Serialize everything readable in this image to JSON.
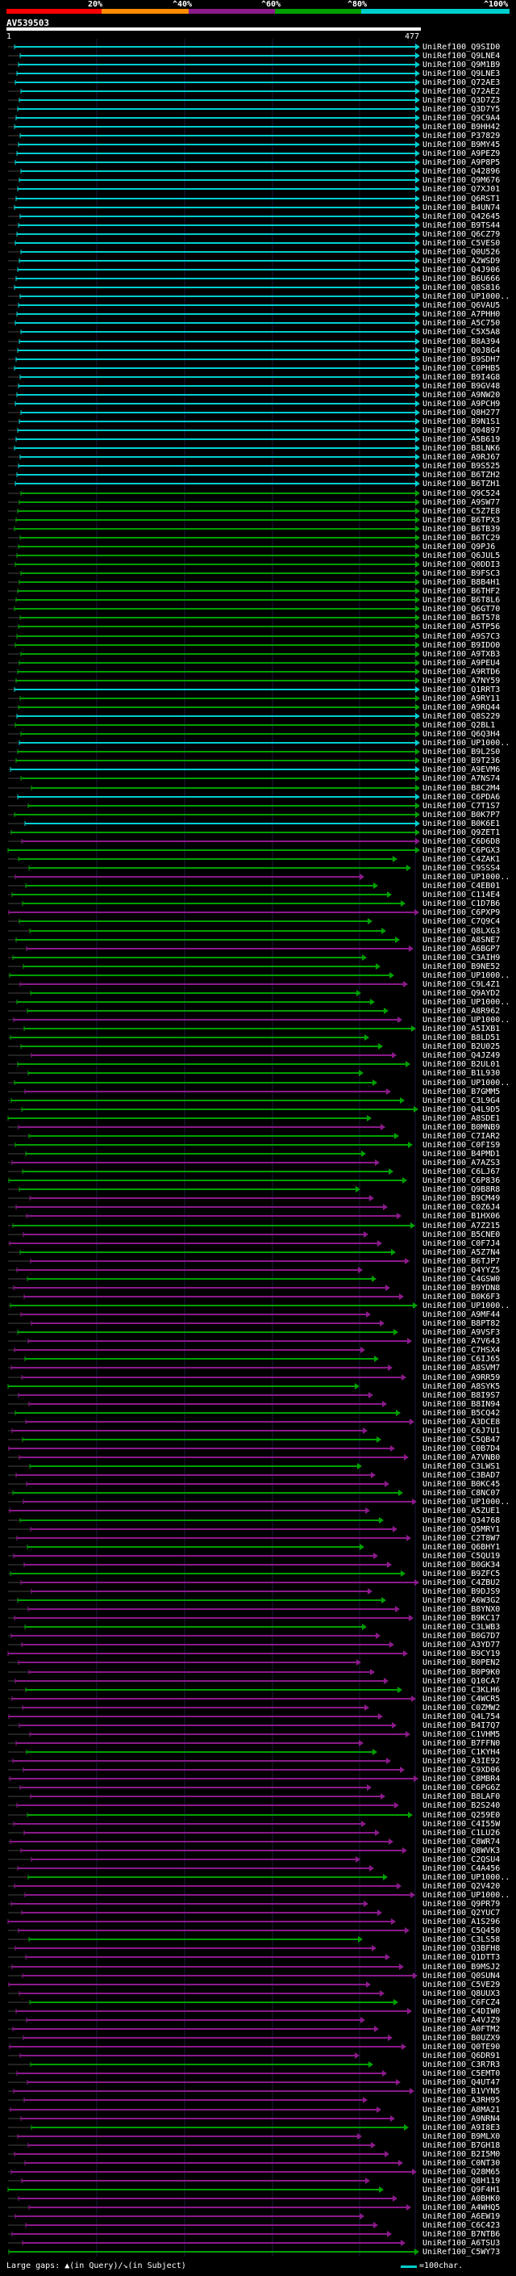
{
  "query": {
    "name": "AV539503",
    "start": "1",
    "end": "477"
  },
  "identity_scale": {
    "labels": [
      "20%",
      "^40%",
      "^60%",
      "^80%",
      "^100%"
    ],
    "colors": [
      "#ff0000",
      "#ff8c00",
      "#8b1a8b",
      "#00a000",
      "#00cfcf"
    ]
  },
  "legend": {
    "gaps_text": "Large gaps: ▲(in Query)/↘(in Subject)",
    "scale_text": "=100char."
  },
  "hits": [
    "UniRef100_Q9SID0",
    "UniRef100_Q9LNE4",
    "UniRef100_Q9M1B9",
    "UniRef100_Q9LNE3",
    "UniRef100_Q72AE3",
    "UniRef100_Q72AE2",
    "UniRef100_Q3D7Z3",
    "UniRef100_Q3D7Y5",
    "UniRef100_Q9C9A4",
    "UniRef100_B9HH42",
    "UniRef100_P37829",
    "UniRef100_B9MY45",
    "UniRef100_A9PEZ9",
    "UniRef100_A9P8P5",
    "UniRef100_Q42896",
    "UniRef100_Q9M676",
    "UniRef100_Q7XJ01",
    "UniRef100_Q6RST1",
    "UniRef100_B4UN74",
    "UniRef100_Q42645",
    "UniRef100_B9TS44",
    "UniRef100_Q6CZ79",
    "UniRef100_C5VES0",
    "UniRef100_Q0U526",
    "UniRef100_A2WSD9",
    "UniRef100_Q4J906",
    "UniRef100_B6U666",
    "UniRef100_Q8S816",
    "UniRef100_UP1000..",
    "UniRef100_Q6VAU5",
    "UniRef100_A7PHH0",
    "UniRef100_A5C750",
    "UniRef100_C5X5A8",
    "UniRef100_B8A394",
    "UniRef100_Q0J8G4",
    "UniRef100_B9SDH7",
    "UniRef100_C0PHB5",
    "UniRef100_B9I4G8",
    "UniRef100_B9GV48",
    "UniRef100_A9NW20",
    "UniRef100_A9PCH9",
    "UniRef100_Q8H277",
    "UniRef100_B9N1S1",
    "UniRef100_Q04897",
    "UniRef100_A5B619",
    "UniRef100_B8LNK6",
    "UniRef100_A9RJ67",
    "UniRef100_B9S525",
    "UniRef100_B6TZH2",
    "UniRef100_B6TZH1",
    "UniRef100_Q9C524",
    "UniRef100_A9SW77",
    "UniRef100_C5Z7E8",
    "UniRef100_B6TPX3",
    "UniRef100_B6TB39",
    "UniRef100_B6TC29",
    "UniRef100_Q9PJ6",
    "UniRef100_Q6JUL5",
    "UniRef100_Q0DDI3",
    "UniRef100_B9FSC3",
    "UniRef100_B8B4H1",
    "UniRef100_B6THF2",
    "UniRef100_B6T8L6",
    "UniRef100_Q6GT70",
    "UniRef100_B6T578",
    "UniRef100_A5TP56",
    "UniRef100_A9S7C3",
    "UniRef100_B9IDO0",
    "UniRef100_A9TXB3",
    "UniRef100_A9PEU4",
    "UniRef100_A9RTD6",
    "UniRef100_A7NY59",
    "UniRef100_Q1RRT3",
    "UniRef100_A9RY11",
    "UniRef100_A9RQ44",
    "UniRef100_Q8S229",
    "UniRef100_Q2BL1",
    "UniRef100_Q6Q3H4",
    "UniRef100_UP1000..",
    "UniRef100_B9L2S0",
    "UniRef100_B9T236",
    "UniRef100_A9EVM6",
    "UniRef100_A7NS74",
    "UniRef100_B8C2M4",
    "UniRef100_C6PDA6",
    "UniRef100_C7T1S7",
    "UniRef100_B0K7P7",
    "UniRef100_B0K6E1",
    "UniRef100_Q9ZET1",
    "UniRef100_C6D6D8",
    "UniRef100_C6PGX3",
    "UniRef100_C4ZAK1",
    "UniRef100_C9SSS4",
    "UniRef100_UP1000..",
    "UniRef100_C4EB01",
    "UniRef100_C114E4",
    "UniRef100_C1D7B6",
    "UniRef100_C6PXP9",
    "UniRef100_C7Q9C4",
    "UniRef100_Q8LXG3",
    "UniRef100_A8SNE7",
    "UniRef100_A6BGP7",
    "UniRef100_C3AIH9",
    "UniRef100_B9NE52",
    "UniRef100_UP1000..",
    "UniRef100_C9L4Z1",
    "UniRef100_Q9AYD2",
    "UniRef100_UP1000..",
    "UniRef100_A8R962",
    "UniRef100_UP1000..",
    "UniRef100_A5IXB1",
    "UniRef100_B8LD51",
    "UniRef100_B2U025",
    "UniRef100_Q4JZ49",
    "UniRef100_B2UL01",
    "UniRef100_B1L930",
    "UniRef100_UP1000..",
    "UniRef100_B7GMM5",
    "UniRef100_C3L9G4",
    "UniRef100_Q4L9D5",
    "UniRef100_A8SDE1",
    "UniRef100_B0MNB9",
    "UniRef100_C7IAR2",
    "UniRef100_C0FIS9",
    "UniRef100_B4PMD1",
    "UniRef100_A7AZS3",
    "UniRef100_C6LJ67",
    "UniRef100_C6P836",
    "UniRef100_Q9B8R8",
    "UniRef100_B9CM49",
    "UniRef100_C0Z6J4",
    "UniRef100_B1HX06",
    "UniRef100_A7Z215",
    "UniRef100_B5CNE0",
    "UniRef100_C0F7J4",
    "UniRef100_A5Z7N4",
    "UniRef100_B6TJP7",
    "UniRef100_Q4YYZ5",
    "UniRef100_C4GSW0",
    "UniRef100_B9YDN8",
    "UniRef100_B0K6F3",
    "UniRef100_UP1000..",
    "UniRef100_A9MF44",
    "UniRef100_B8PT82",
    "UniRef100_A9VSF3",
    "UniRef100_A7V643",
    "UniRef100_C7HSX4",
    "UniRef100_C6IJ65",
    "UniRef100_A8SVM7",
    "UniRef100_A9RR59",
    "UniRef100_A8SYK5",
    "UniRef100_B8I9S7",
    "UniRef100_B8IN94",
    "UniRef100_B5CQ42",
    "UniRef100_A3DCE8",
    "UniRef100_C6J7U1",
    "UniRef100_C5QB47",
    "UniRef100_C0B7D4",
    "UniRef100_A7VNB0",
    "UniRef100_C3LWS1",
    "UniRef100_C3BAD7",
    "UniRef100_B0KC45",
    "UniRef100_C8NC07",
    "UniRef100_UP1000..",
    "UniRef100_A5ZUE1",
    "UniRef100_Q34768",
    "UniRef100_Q5MRY1",
    "UniRef100_C2T8W7",
    "UniRef100_Q6BHY1",
    "UniRef100_C5QU19",
    "UniRef100_B0GK34",
    "UniRef100_B9ZFC5",
    "UniRef100_C4ZBU2",
    "UniRef100_B9DJS9",
    "UniRef100_A6W3G2",
    "UniRef100_B8YNX0",
    "UniRef100_B9KC17",
    "UniRef100_C3LWB3",
    "UniRef100_B0G7D7",
    "UniRef100_A3YD77",
    "UniRef100_B9CY19",
    "UniRef100_B0PEN2",
    "UniRef100_B0P9K0",
    "UniRef100_Q10CA7",
    "UniRef100_C3KLH6",
    "UniRef100_C4WCR5",
    "UniRef100_C0ZMW2",
    "UniRef100_Q4L754",
    "UniRef100_B4I7Q7",
    "UniRef100_C1VHM5",
    "UniRef100_B7FFN0",
    "UniRef100_C1KYH4",
    "UniRef100_A3IE92",
    "UniRef100_C9XD06",
    "UniRef100_C8MBR4",
    "UniRef100_C6PG6Z",
    "UniRef100_B8LAF0",
    "UniRef100_B2S240",
    "UniRef100_Q259E0",
    "UniRef100_C4I55W",
    "UniRef100_C1LU26",
    "UniRef100_C8WR74",
    "UniRef100_Q8WVK3",
    "UniRef100_C2QSU4",
    "UniRef100_C4A456",
    "UniRef100_UP1000..",
    "UniRef100_Q2V420",
    "UniRef100_UP1000..",
    "UniRef100_Q9PR79",
    "UniRef100_Q2YUC7",
    "UniRef100_A1S296",
    "UniRef100_C5Q450",
    "UniRef100_C3LS58",
    "UniRef100_Q3BFH8",
    "UniRef100_Q1DTT3",
    "UniRef100_B9MSJ2",
    "UniRef100_Q0SUN4",
    "UniRef100_C5VE29",
    "UniRef100_Q8UUX3",
    "UniRef100_C6FCZ4",
    "UniRef100_C4DIW0",
    "UniRef100_A4VJZ9",
    "UniRef100_A0FTM2",
    "UniRef100_B0UZX9",
    "UniRef100_Q0TE90",
    "UniRef100_Q6DR91",
    "UniRef100_C3R7R3",
    "UniRef100_C5EMT0",
    "UniRef100_Q4UT47",
    "UniRef100_B1VYN5",
    "UniRef100_A3RH95",
    "UniRef100_A8MA21",
    "UniRef100_A9NRN4",
    "UniRef100_A9I8E3",
    "UniRef100_B9MLX0",
    "UniRef100_B7GH18",
    "UniRef100_B2I5M0",
    "UniRef100_C0NT30",
    "UniRef100_Q28M65",
    "UniRef100_Q8H119",
    "UniRef100_Q9F4H1",
    "UniRef100_A0BHK0",
    "UniRef100_A4WHQ5",
    "UniRef100_A6EW19",
    "UniRef100_C6C423",
    "UniRef100_B7NTB6",
    "UniRef100_A6TSU3",
    "UniRef100_C5WY73"
  ]
}
